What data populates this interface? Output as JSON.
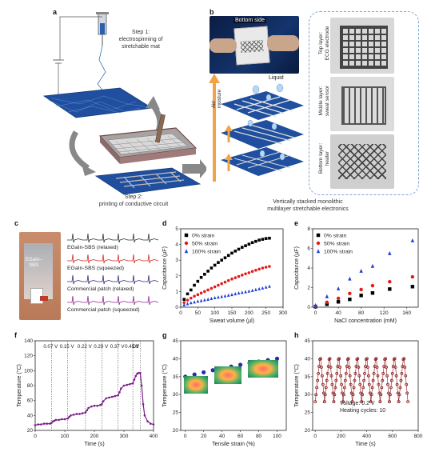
{
  "panels": {
    "a": "a",
    "b": "b",
    "c": "c",
    "d": "d",
    "e": "e",
    "f": "f",
    "g": "g",
    "h": "h"
  },
  "panel_a": {
    "step1": "Step 1:\nelectrospinning of\nstretchable mat",
    "step2": "Step 2:\nprinting of conductive circuit"
  },
  "panel_b": {
    "bottom_side": "Bottom side",
    "air_moisture": "Air/\nmoisture",
    "liquid": "Liquid",
    "top_layer": "Top layer:\nECG electrode",
    "middle_layer": "Middle layer:\nsweat sensor",
    "bottom_layer": "Bottom layer:\nheater",
    "caption": "Vertically stacked monolithic\nmultilayer stretchable electronics"
  },
  "panel_c": {
    "probe_label": "EGaIn–\nSBS",
    "traces": [
      {
        "label": "EGaIn-SBS (relaxed)",
        "color": "#333333"
      },
      {
        "label": "EGaIn-SBS (squeezed)",
        "color": "#d62728"
      },
      {
        "label": "Commercial patch (relaxed)",
        "color": "#2c2c7a"
      },
      {
        "label": "Commercial patch (squeezed)",
        "color": "#8e2a8e"
      }
    ]
  },
  "chart_data": [
    {
      "panel": "d",
      "type": "scatter",
      "xlabel": "Sweat volume (µl)",
      "ylabel": "Capacitance (µF)",
      "xlim": [
        0,
        300
      ],
      "ylim": [
        0,
        5
      ],
      "xticks": [
        "0",
        "50",
        "100",
        "150",
        "200",
        "250",
        "300"
      ],
      "yticks": [
        "0",
        "1",
        "2",
        "3",
        "4",
        "5"
      ],
      "legend_position": "top-left",
      "series": [
        {
          "name": "0% strain",
          "color": "#000000",
          "marker": "square",
          "x": [
            10,
            20,
            30,
            40,
            50,
            60,
            70,
            80,
            90,
            100,
            110,
            120,
            130,
            140,
            150,
            160,
            170,
            180,
            190,
            200,
            210,
            220,
            230,
            240,
            250,
            260
          ],
          "y": [
            0.5,
            0.85,
            1.1,
            1.4,
            1.65,
            1.9,
            2.1,
            2.3,
            2.5,
            2.68,
            2.85,
            3.0,
            3.15,
            3.3,
            3.45,
            3.58,
            3.7,
            3.82,
            3.92,
            4.02,
            4.12,
            4.2,
            4.28,
            4.33,
            4.38,
            4.4
          ]
        },
        {
          "name": "50% strain",
          "color": "#e31a1c",
          "marker": "circle",
          "x": [
            10,
            20,
            30,
            40,
            50,
            60,
            70,
            80,
            90,
            100,
            110,
            120,
            130,
            140,
            150,
            160,
            170,
            180,
            190,
            200,
            210,
            220,
            230,
            240,
            250,
            260
          ],
          "y": [
            0.3,
            0.45,
            0.58,
            0.7,
            0.8,
            0.9,
            1.0,
            1.1,
            1.2,
            1.3,
            1.4,
            1.5,
            1.6,
            1.7,
            1.8,
            1.88,
            1.96,
            2.05,
            2.13,
            2.2,
            2.28,
            2.36,
            2.43,
            2.5,
            2.55,
            2.6
          ]
        },
        {
          "name": "100% strain",
          "color": "#1f3fd9",
          "marker": "triangle",
          "x": [
            10,
            20,
            30,
            40,
            50,
            60,
            70,
            80,
            90,
            100,
            110,
            120,
            130,
            140,
            150,
            160,
            170,
            180,
            190,
            200,
            210,
            220,
            230,
            240,
            250,
            260
          ],
          "y": [
            0.15,
            0.22,
            0.28,
            0.33,
            0.38,
            0.42,
            0.46,
            0.5,
            0.55,
            0.6,
            0.64,
            0.68,
            0.72,
            0.76,
            0.8,
            0.85,
            0.9,
            0.94,
            0.98,
            1.02,
            1.07,
            1.12,
            1.17,
            1.22,
            1.28,
            1.33
          ]
        }
      ]
    },
    {
      "panel": "e",
      "type": "scatter",
      "xlabel": "NaCl concentration (mM)",
      "ylabel": "Capacitance (µF)",
      "xlim": [
        -5,
        180
      ],
      "ylim": [
        0,
        8
      ],
      "xticks": [
        "0",
        "40",
        "80",
        "120",
        "160"
      ],
      "yticks": [
        "0",
        "2",
        "4",
        "6",
        "8"
      ],
      "legend_position": "top-left",
      "series": [
        {
          "name": "0% strain",
          "color": "#000000",
          "marker": "square",
          "x": [
            0,
            20,
            40,
            60,
            80,
            100,
            130,
            170
          ],
          "y": [
            0.05,
            0.3,
            0.55,
            0.8,
            1.2,
            1.45,
            1.85,
            2.1
          ]
        },
        {
          "name": "50% strain",
          "color": "#e31a1c",
          "marker": "circle",
          "x": [
            0,
            20,
            40,
            60,
            80,
            100,
            130,
            170
          ],
          "y": [
            0.1,
            0.5,
            0.9,
            1.4,
            1.8,
            2.2,
            2.6,
            3.1
          ]
        },
        {
          "name": "100% strain",
          "color": "#1f3fd9",
          "marker": "triangle",
          "x": [
            0,
            20,
            40,
            60,
            80,
            100,
            130,
            170
          ],
          "y": [
            0.2,
            1.1,
            1.9,
            2.9,
            3.7,
            4.2,
            5.5,
            6.8
          ]
        }
      ]
    },
    {
      "panel": "f",
      "type": "line",
      "xlabel": "Time (s)",
      "ylabel": "Temperature (°C)",
      "xlim": [
        0,
        400
      ],
      "ylim": [
        20,
        140
      ],
      "xticks": [
        "0",
        "100",
        "200",
        "300",
        "400"
      ],
      "yticks": [
        "20",
        "40",
        "60",
        "80",
        "100",
        "120",
        "140"
      ],
      "color": "#7b1f8a",
      "voltage_markers": [
        {
          "t": 55,
          "label": "0.07 V"
        },
        {
          "t": 110,
          "label": "0.15 V"
        },
        {
          "t": 170,
          "label": "0.22 V"
        },
        {
          "t": 225,
          "label": "0.29 V"
        },
        {
          "t": 280,
          "label": "0.37 V"
        },
        {
          "t": 330,
          "label": "0.45 V"
        },
        {
          "t": 355,
          "label": "Off"
        }
      ],
      "x": [
        0,
        10,
        20,
        30,
        40,
        50,
        55,
        60,
        65,
        70,
        80,
        90,
        100,
        110,
        115,
        120,
        130,
        140,
        150,
        160,
        170,
        175,
        180,
        190,
        200,
        210,
        220,
        225,
        230,
        240,
        250,
        260,
        270,
        280,
        285,
        290,
        300,
        310,
        320,
        330,
        335,
        340,
        345,
        350,
        355,
        360,
        365,
        370,
        380,
        390,
        400
      ],
      "y": [
        27,
        28,
        28,
        29,
        29,
        29,
        30,
        32,
        33,
        34,
        34,
        35,
        35,
        36,
        38,
        40,
        41,
        42,
        42,
        43,
        44,
        47,
        50,
        52,
        53,
        53,
        54,
        55,
        59,
        63,
        64,
        65,
        66,
        67,
        71,
        76,
        80,
        81,
        82,
        83,
        88,
        93,
        96,
        97,
        97,
        80,
        55,
        40,
        32,
        29,
        28
      ]
    },
    {
      "panel": "g",
      "type": "scatter",
      "xlabel": "Tensile strain (%)",
      "ylabel": "Temperature (°C)",
      "xlim": [
        -5,
        110
      ],
      "ylim": [
        20,
        45
      ],
      "xticks": [
        "0",
        "20",
        "40",
        "60",
        "80",
        "100"
      ],
      "yticks": [
        "20",
        "25",
        "30",
        "35",
        "40",
        "45"
      ],
      "color": "#2a2ab3",
      "x": [
        0,
        10,
        20,
        30,
        40,
        50,
        60,
        70,
        80,
        90,
        100
      ],
      "y": [
        35.0,
        35.6,
        36.2,
        36.8,
        37.3,
        37.8,
        38.3,
        38.8,
        39.2,
        39.6,
        40.0
      ]
    },
    {
      "panel": "h",
      "type": "line",
      "xlabel": "Time (s)",
      "ylabel": "Temperature (°C)",
      "xlim": [
        -20,
        800
      ],
      "ylim": [
        20,
        45
      ],
      "xticks": [
        "0",
        "200",
        "400",
        "600",
        "800"
      ],
      "yticks": [
        "20",
        "25",
        "30",
        "35",
        "40",
        "45"
      ],
      "color": "#8b1a1a",
      "annotation": "Voltage: 0.2 V\nHeating cycles: 10",
      "cycles": 10,
      "t_start": 0,
      "t_end": 720,
      "t_min": 28,
      "t_max": 41
    }
  ]
}
